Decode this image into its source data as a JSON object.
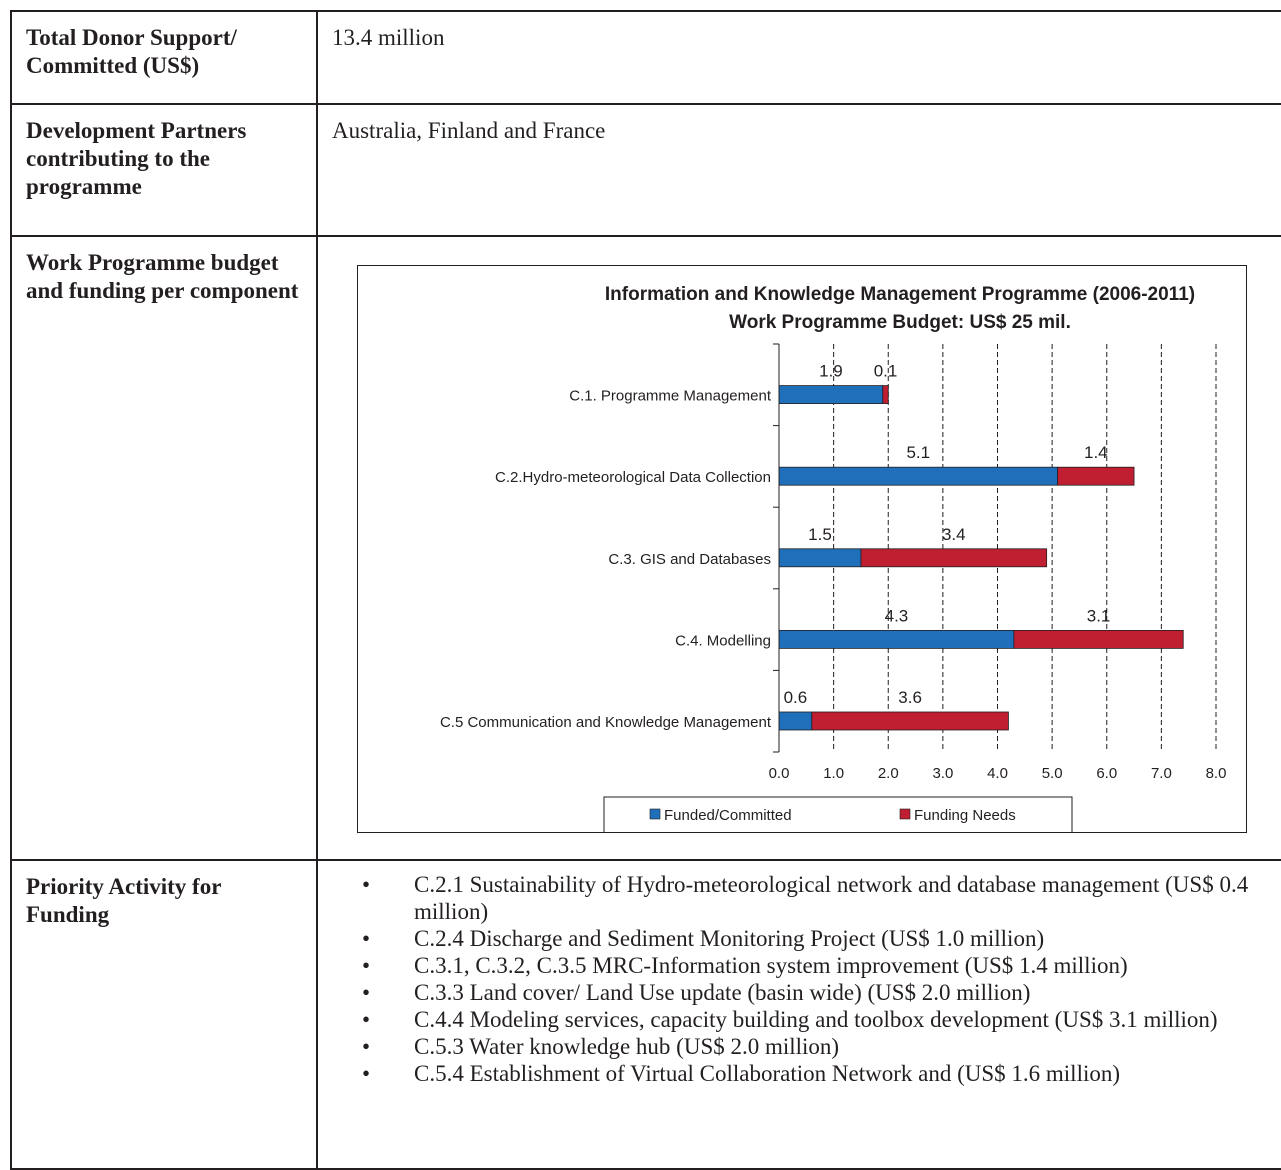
{
  "rows": [
    {
      "label": "Total Donor Support/ Committed (US$)",
      "value": "13.4 million"
    },
    {
      "label": "Development Partners contributing to the programme",
      "value": "Australia, Finland and France"
    },
    {
      "label": "Work Programme budget and funding per component"
    },
    {
      "label": "Priority Activity for Funding"
    }
  ],
  "priority_activities": [
    "C.2.1 Sustainability of Hydro-meteorological network and database management (US$ 0.4 million)",
    "C.2.4 Discharge and Sediment Monitoring Project (US$ 1.0 million)",
    "C.3.1, C.3.2, C.3.5 MRC-Information system improvement (US$ 1.4 million)",
    "C.3.3 Land cover/ Land Use update (basin wide) (US$ 2.0 million)",
    "C.4.4 Modeling services, capacity building and toolbox development (US$ 3.1 million)",
    "C.5.3 Water knowledge hub (US$ 2.0 million)",
    "C.5.4 Establishment of Virtual Collaboration Network and (US$ 1.6 million)"
  ],
  "bullet_glyph": "•",
  "colors": {
    "funded": "#1f6fba",
    "needs": "#c01f32",
    "text": "#231f20"
  },
  "chart_data": {
    "type": "bar",
    "orientation": "horizontal",
    "stacked": true,
    "title": "Information and Knowledge Management Programme (2006-2011)",
    "subtitle": "Work Programme Budget: US$ 25 mil.",
    "categories": [
      "C.1. Programme Management",
      "C.2.Hydro-meteorological Data Collection",
      "C.3. GIS and Databases",
      "C.4. Modelling",
      "C.5 Communication and Knowledge Management"
    ],
    "series": [
      {
        "name": "Funded/Committed",
        "values": [
          1.9,
          5.1,
          1.5,
          4.3,
          0.6
        ],
        "labels": [
          "1.9",
          "5.1",
          "1.5",
          "4.3",
          "0.6"
        ]
      },
      {
        "name": "Funding Needs",
        "values": [
          0.1,
          1.4,
          3.4,
          3.1,
          3.6
        ],
        "labels": [
          "0.1",
          "1.4",
          "3.4",
          "3.1",
          "3.6"
        ]
      }
    ],
    "xlim": [
      0,
      8
    ],
    "xticks": [
      "0.0",
      "1.0",
      "2.0",
      "3.0",
      "4.0",
      "5.0",
      "6.0",
      "7.0",
      "8.0"
    ],
    "grid": "vertical dashed",
    "legend": "bottom"
  }
}
